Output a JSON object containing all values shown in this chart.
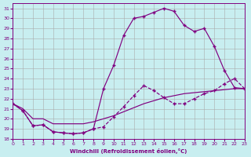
{
  "bg_color": "#c8eef0",
  "line_color": "#800080",
  "grid_color": "#aaaaaa",
  "ylim": [
    18,
    31.5
  ],
  "xlim": [
    0,
    23
  ],
  "yticks": [
    18,
    19,
    20,
    21,
    22,
    23,
    24,
    25,
    26,
    27,
    28,
    29,
    30,
    31
  ],
  "xticks": [
    0,
    1,
    2,
    3,
    4,
    5,
    6,
    7,
    8,
    9,
    10,
    11,
    12,
    13,
    14,
    15,
    16,
    17,
    18,
    19,
    20,
    21,
    22,
    23
  ],
  "xlabel": "Windchill (Refroidissement éolien,°C)",
  "curve_peak_x": [
    0,
    1,
    2,
    3,
    4,
    5,
    6,
    7,
    8,
    9,
    10,
    11,
    12,
    13,
    14,
    15,
    16,
    17,
    18,
    19,
    20,
    21,
    22,
    23
  ],
  "curve_peak_y": [
    21.5,
    20.8,
    19.3,
    19.4,
    18.7,
    18.6,
    18.5,
    18.6,
    19.0,
    23.0,
    25.3,
    28.3,
    30.0,
    30.2,
    30.6,
    31.0,
    30.7,
    29.3,
    28.7,
    29.0,
    27.2,
    24.8,
    23.1,
    23.0
  ],
  "curve_mid_x": [
    0,
    1,
    2,
    3,
    4,
    5,
    6,
    7,
    8,
    9,
    10,
    11,
    12,
    13,
    14,
    15,
    16,
    17,
    18,
    19,
    20,
    21,
    22,
    23
  ],
  "curve_mid_y": [
    21.5,
    20.8,
    19.3,
    19.4,
    18.7,
    18.6,
    18.5,
    18.6,
    19.0,
    19.2,
    20.2,
    21.2,
    22.3,
    23.3,
    22.8,
    22.1,
    21.5,
    21.5,
    22.0,
    22.5,
    22.8,
    23.5,
    24.0,
    23.0
  ],
  "curve_diag_x": [
    0,
    1,
    2,
    3,
    4,
    5,
    6,
    7,
    8,
    9,
    10,
    11,
    12,
    13,
    14,
    15,
    16,
    17,
    18,
    19,
    20,
    21,
    22,
    23
  ],
  "curve_diag_y": [
    21.5,
    21.0,
    20.0,
    20.0,
    19.5,
    19.5,
    19.5,
    19.5,
    19.7,
    20.0,
    20.3,
    20.7,
    21.1,
    21.5,
    21.8,
    22.1,
    22.3,
    22.5,
    22.6,
    22.7,
    22.8,
    22.9,
    23.0,
    23.0
  ]
}
